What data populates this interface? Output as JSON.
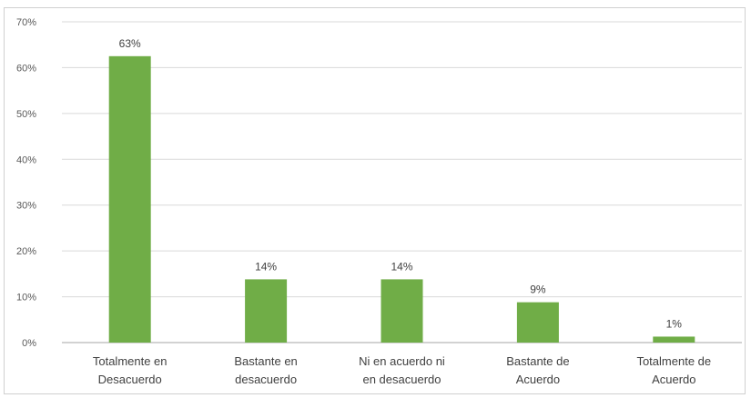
{
  "chart_data": {
    "type": "bar",
    "title": "",
    "xlabel": "",
    "ylabel": "",
    "categories": [
      [
        "Totalmente en",
        "Desacuerdo"
      ],
      [
        "Bastante en",
        "desacuerdo"
      ],
      [
        "Ni en acuerdo ni",
        "en desacuerdo"
      ],
      [
        "Bastante de",
        "Acuerdo"
      ],
      [
        "Totalmente de",
        "Acuerdo"
      ]
    ],
    "values": [
      62.5,
      13.8,
      13.8,
      8.8,
      1.3
    ],
    "data_labels": [
      "63%",
      "14%",
      "14%",
      "9%",
      "1%"
    ],
    "ylim": [
      0,
      70
    ],
    "yticks": [
      0,
      10,
      20,
      30,
      40,
      50,
      60,
      70
    ],
    "ytick_labels": [
      "0%",
      "10%",
      "20%",
      "30%",
      "40%",
      "50%",
      "60%",
      "70%"
    ],
    "grid": true,
    "legend": "none",
    "bar_color": "#70ad47"
  }
}
